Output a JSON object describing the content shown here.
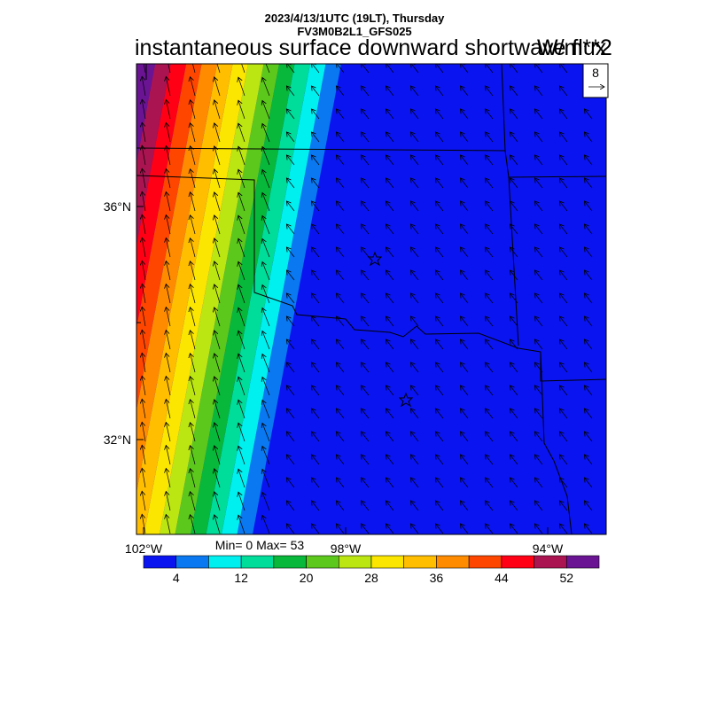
{
  "header": {
    "datetime": "2023/4/13/1UTC (19LT), Thursday",
    "model": "FV3M0B2L1_GFS025",
    "title": "instantaneous surface downward shortwave flux",
    "units": "W/m**2"
  },
  "vector_ref": {
    "magnitude": "8"
  },
  "axes": {
    "lat_labels": [
      "36°N",
      "32°N"
    ],
    "lon_labels": [
      "102°W",
      "98°W",
      "94°W"
    ]
  },
  "stats": {
    "text": "Min= 0 Max= 53"
  },
  "colorbar": {
    "colors": [
      "#0a14f0",
      "#0a78f0",
      "#00f0f0",
      "#00dc9a",
      "#08b83a",
      "#5cc81c",
      "#bce612",
      "#fae600",
      "#ffbe00",
      "#ff8c00",
      "#ff4600",
      "#ff0014",
      "#aa1450",
      "#6a1494"
    ],
    "labels": [
      "4",
      "12",
      "20",
      "28",
      "36",
      "44",
      "52"
    ]
  },
  "map_data": {
    "field": "instantaneous surface downward shortwave flux",
    "units": "W/m**2",
    "min": 0,
    "max": 53,
    "lat_range": [
      30.6,
      38.6
    ],
    "lon_range": [
      -102.3,
      -93.5
    ],
    "markers": [
      "star",
      "star"
    ],
    "wind_vectors": "arrows pointing north-northwest"
  }
}
